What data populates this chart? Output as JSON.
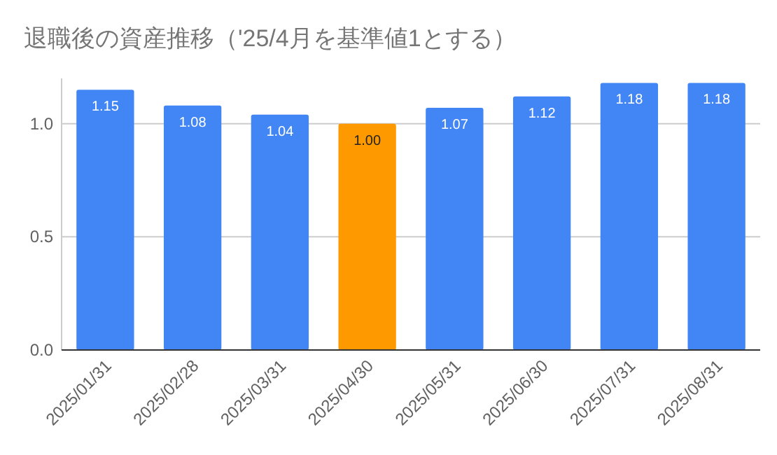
{
  "chart_data": {
    "type": "bar",
    "title": "退職後の資産推移（'25/4月を基準値1とする）",
    "categories": [
      "2025/01/31",
      "2025/02/28",
      "2025/03/31",
      "2025/04/30",
      "2025/05/31",
      "2025/06/30",
      "2025/07/31",
      "2025/08/31"
    ],
    "values": [
      1.15,
      1.08,
      1.04,
      1.0,
      1.07,
      1.12,
      1.18,
      1.18
    ],
    "value_labels": [
      "1.15",
      "1.08",
      "1.04",
      "1.00",
      "1.07",
      "1.12",
      "1.18",
      "1.18"
    ],
    "colors": [
      "#4285f4",
      "#4285f4",
      "#4285f4",
      "#ff9900",
      "#4285f4",
      "#4285f4",
      "#4285f4",
      "#4285f4"
    ],
    "ylim": [
      0,
      1.2
    ],
    "yticks": [
      {
        "value": 0,
        "label": "0.0"
      },
      {
        "value": 0.5,
        "label": "0.5"
      },
      {
        "value": 1,
        "label": "1.0"
      }
    ],
    "grid": "y"
  }
}
